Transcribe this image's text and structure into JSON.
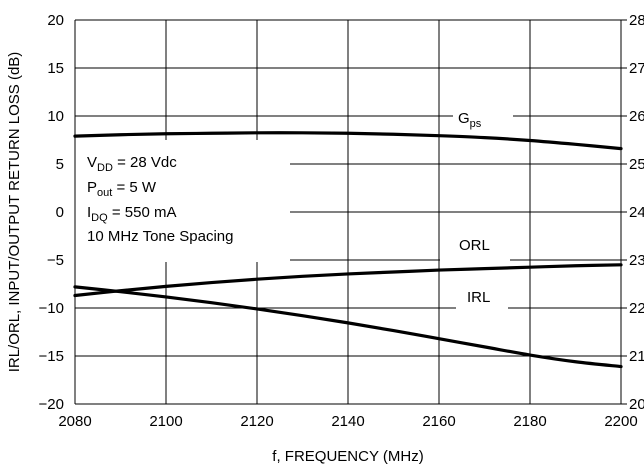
{
  "chart_data": {
    "type": "line",
    "xlabel": "f, FREQUENCY (MHz)",
    "ylabel": "IRL/ORL, INPUT/OUTPUT RETURN LOSS (dB)",
    "xlim": [
      2080,
      2200
    ],
    "ylim": [
      -20,
      20
    ],
    "x_ticks": [
      "2080",
      "2100",
      "2120",
      "2140",
      "2160",
      "2180",
      "2200"
    ],
    "y_ticks": [
      "20",
      "15",
      "10",
      "5",
      "0",
      "−5",
      "−10",
      "−15",
      "−20"
    ],
    "y2_ticks": [
      "28",
      "27",
      "26",
      "25",
      "24",
      "23",
      "22",
      "21",
      "20"
    ],
    "grid": true,
    "conditions": [
      {
        "main": "V",
        "sub": "DD",
        "rest": " = 28 Vdc"
      },
      {
        "main": "P",
        "sub": "out",
        "rest": " = 5 W"
      },
      {
        "main": "I",
        "sub": "DQ",
        "rest": " = 550 mA"
      },
      {
        "main": "10 MHz Tone Spacing",
        "sub": "",
        "rest": ""
      }
    ],
    "series": [
      {
        "name": "Gps",
        "label_main": "G",
        "label_sub": "ps",
        "x": [
          2080,
          2090,
          2100,
          2110,
          2120,
          2130,
          2140,
          2150,
          2160,
          2170,
          2180,
          2190,
          2200
        ],
        "y": [
          7.9,
          8.05,
          8.15,
          8.2,
          8.25,
          8.25,
          8.2,
          8.1,
          7.95,
          7.75,
          7.45,
          7.05,
          6.6
        ]
      },
      {
        "name": "ORL",
        "label_main": "ORL",
        "label_sub": "",
        "x": [
          2080,
          2090,
          2100,
          2110,
          2120,
          2130,
          2140,
          2150,
          2160,
          2170,
          2180,
          2190,
          2200
        ],
        "y": [
          -8.7,
          -8.2,
          -7.75,
          -7.35,
          -7.0,
          -6.7,
          -6.45,
          -6.25,
          -6.05,
          -5.9,
          -5.75,
          -5.6,
          -5.5
        ]
      },
      {
        "name": "IRL",
        "label_main": "IRL",
        "label_sub": "",
        "x": [
          2080,
          2090,
          2100,
          2110,
          2120,
          2130,
          2140,
          2150,
          2160,
          2170,
          2180,
          2190,
          2200
        ],
        "y": [
          -7.8,
          -8.3,
          -8.85,
          -9.45,
          -10.1,
          -10.8,
          -11.55,
          -12.35,
          -13.2,
          -14.05,
          -14.9,
          -15.6,
          -16.1
        ]
      }
    ]
  }
}
